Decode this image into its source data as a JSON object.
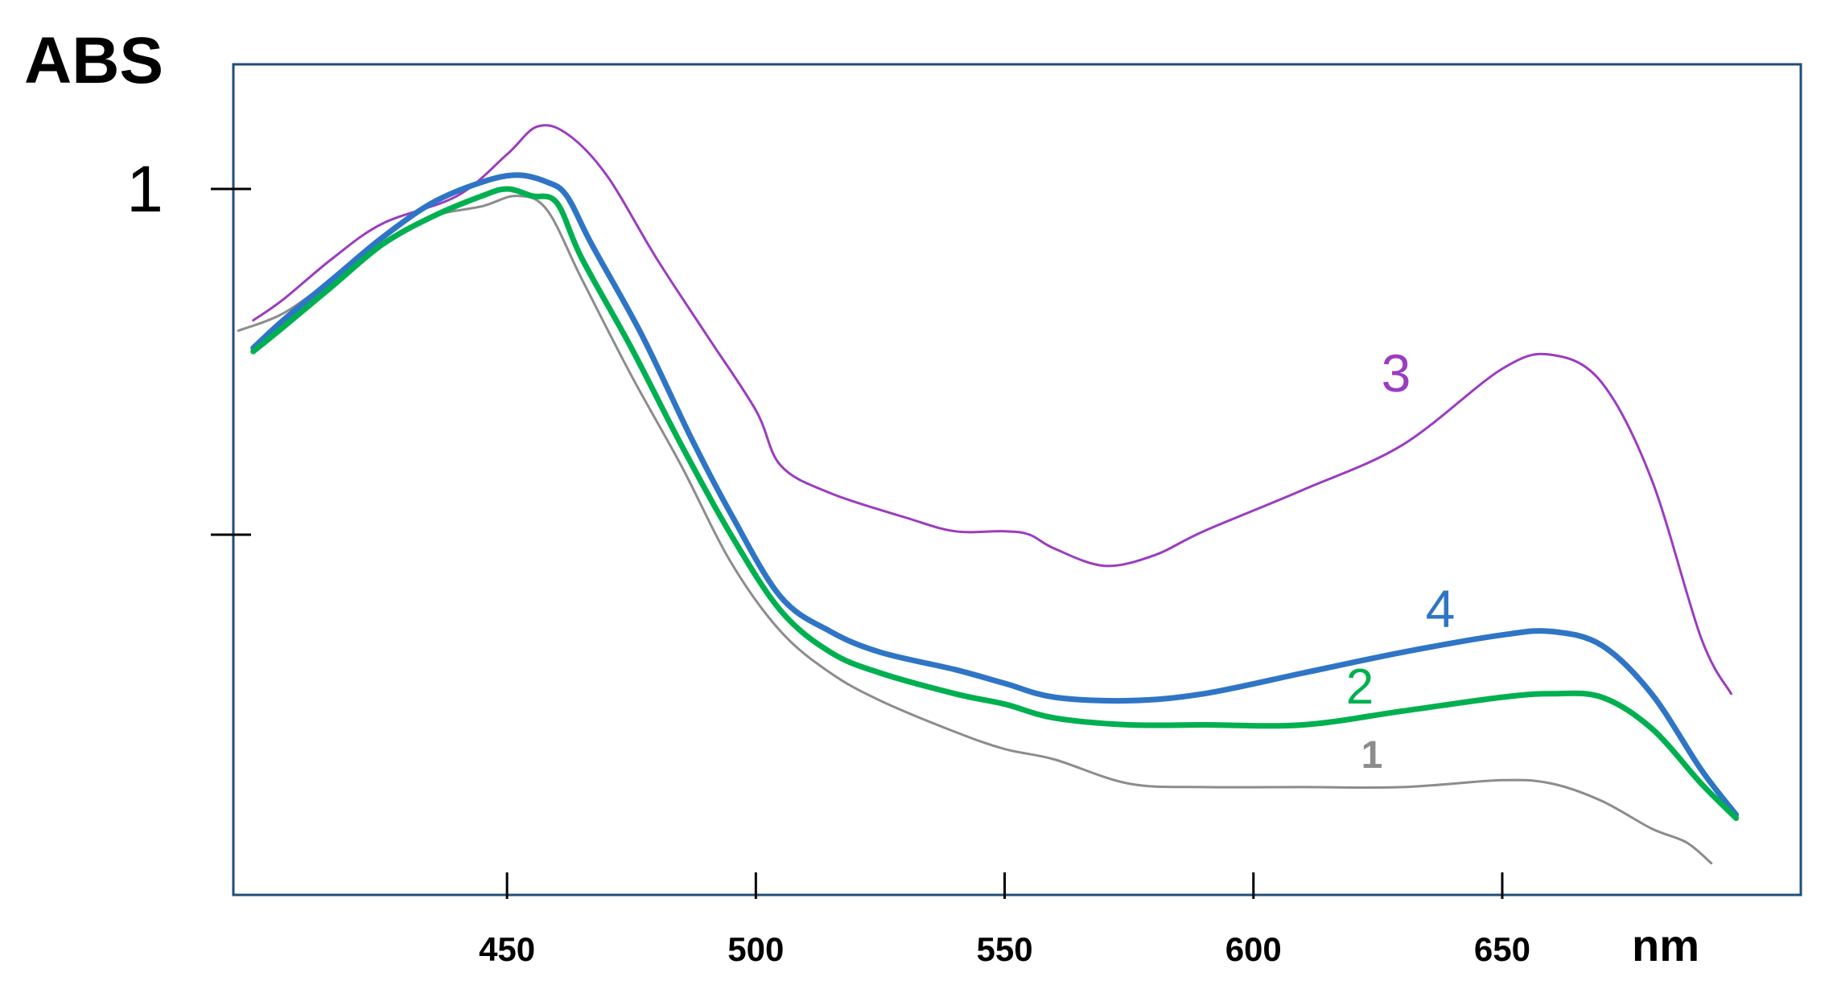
{
  "chart_data": {
    "type": "line",
    "ylabel": "ABS",
    "xlabel": "nm",
    "x_ticks": [
      "450",
      "500",
      "550",
      "600",
      "650"
    ],
    "y_ticks": [
      {
        "value": 1,
        "label": "1"
      },
      {
        "value": 0.5,
        "label": ""
      }
    ],
    "xlim": [
      395,
      710
    ],
    "ylim": [
      -0.0,
      1.1
    ],
    "grid": false,
    "series": [
      {
        "name": "1",
        "color": "#8c8c8c",
        "x": [
          396,
          405,
          415,
          425,
          435,
          445,
          452,
          458,
          465,
          475,
          485,
          495,
          505,
          515,
          525,
          540,
          550,
          560,
          575,
          590,
          610,
          630,
          650,
          660,
          670,
          680,
          687,
          692
        ],
        "y": [
          0.795,
          0.82,
          0.87,
          0.92,
          0.96,
          0.975,
          0.99,
          0.97,
          0.87,
          0.73,
          0.6,
          0.46,
          0.36,
          0.3,
          0.26,
          0.215,
          0.19,
          0.175,
          0.14,
          0.135,
          0.135,
          0.135,
          0.145,
          0.14,
          0.115,
          0.075,
          0.055,
          0.025
        ]
      },
      {
        "name": "2",
        "color": "#00b050",
        "x": [
          399,
          405,
          415,
          425,
          435,
          445,
          450,
          455,
          460,
          465,
          475,
          485,
          495,
          505,
          515,
          525,
          540,
          550,
          560,
          575,
          590,
          610,
          630,
          650,
          660,
          670,
          680,
          690,
          697
        ],
        "y": [
          0.765,
          0.8,
          0.86,
          0.92,
          0.96,
          0.99,
          1.0,
          0.99,
          0.98,
          0.9,
          0.77,
          0.63,
          0.5,
          0.39,
          0.33,
          0.3,
          0.27,
          0.255,
          0.235,
          0.225,
          0.225,
          0.225,
          0.245,
          0.265,
          0.27,
          0.265,
          0.22,
          0.14,
          0.09
        ]
      },
      {
        "name": "3",
        "color": "#9b3cbf",
        "x": [
          399,
          405,
          415,
          425,
          440,
          450,
          456,
          462,
          470,
          480,
          490,
          500,
          505,
          515,
          530,
          540,
          550,
          555,
          560,
          570,
          580,
          590,
          610,
          630,
          650,
          660,
          670,
          680,
          690,
          696
        ],
        "y": [
          0.81,
          0.84,
          0.9,
          0.95,
          0.99,
          1.05,
          1.09,
          1.08,
          1.02,
          0.9,
          0.79,
          0.68,
          0.6,
          0.56,
          0.525,
          0.505,
          0.505,
          0.5,
          0.48,
          0.455,
          0.47,
          0.505,
          0.565,
          0.63,
          0.74,
          0.76,
          0.72,
          0.58,
          0.35,
          0.27
        ]
      },
      {
        "name": "4",
        "color": "#2f75c6",
        "x": [
          399,
          405,
          415,
          425,
          435,
          445,
          452,
          458,
          462,
          467,
          477,
          487,
          495,
          505,
          515,
          525,
          540,
          550,
          560,
          575,
          590,
          610,
          630,
          650,
          660,
          670,
          680,
          690,
          697
        ],
        "y": [
          0.77,
          0.81,
          0.87,
          0.93,
          0.98,
          1.01,
          1.02,
          1.01,
          0.99,
          0.92,
          0.79,
          0.64,
          0.53,
          0.41,
          0.36,
          0.33,
          0.305,
          0.285,
          0.265,
          0.26,
          0.27,
          0.3,
          0.33,
          0.355,
          0.36,
          0.34,
          0.27,
          0.16,
          0.095
        ]
      }
    ]
  }
}
